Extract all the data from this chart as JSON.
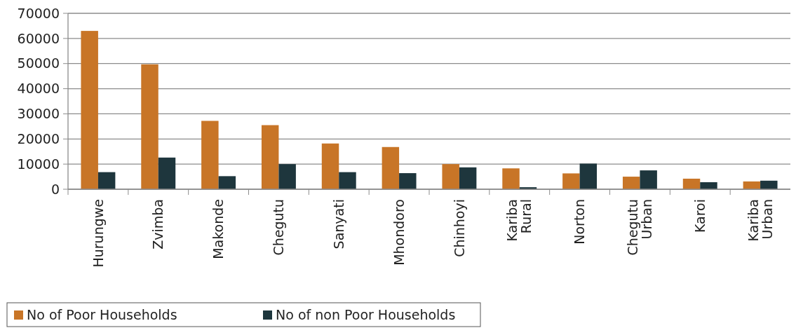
{
  "chart_data": {
    "type": "bar",
    "categories": [
      "Hurungwe",
      "Zvimba",
      "Makonde",
      "Chegutu",
      "Sanyati",
      "Mhondoro",
      "Chinhoyi",
      "Kariba Rural",
      "Norton",
      "Chegutu Urban",
      "Karoi",
      "Kariba Urban"
    ],
    "series": [
      {
        "name": "No of Poor Households",
        "color": "#c87527",
        "values": [
          63000,
          49700,
          27200,
          25500,
          18200,
          16800,
          10000,
          8300,
          6300,
          5000,
          4200,
          3100
        ]
      },
      {
        "name": "No of non Poor Households",
        "color": "#1e363d",
        "values": [
          6800,
          12600,
          5200,
          10000,
          6800,
          6400,
          8700,
          800,
          10200,
          7500,
          2800,
          3400
        ]
      }
    ],
    "ylim": [
      0,
      70000
    ],
    "yticks": [
      0,
      10000,
      20000,
      30000,
      40000,
      50000,
      60000,
      70000
    ],
    "grid": "y",
    "legend": "bottom"
  }
}
